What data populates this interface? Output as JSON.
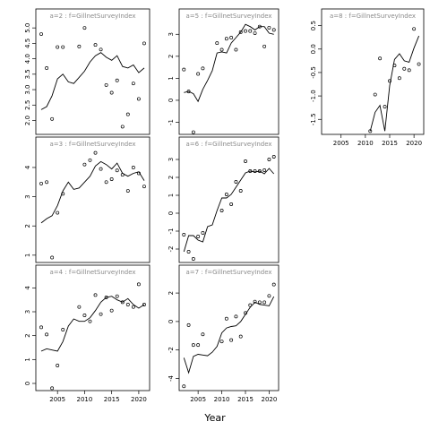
{
  "chart_data": {
    "type": "scatter",
    "xlabel": "Year",
    "x_ticks": [
      2005,
      2010,
      2015,
      2020
    ],
    "xlim": [
      2001,
      2022
    ],
    "panels": [
      {
        "label": "a=2 : f=GillnetSurveyIndex",
        "ylim": [
          1.55,
          5.15
        ],
        "y_ticks": [
          2.0,
          2.5,
          3.0,
          3.5,
          4.0,
          4.5,
          5.0
        ],
        "y_tick_labels": [
          "2.0",
          "2.5",
          "3.0",
          "3.5",
          "4.0",
          "4.5",
          "5.0"
        ],
        "points": {
          "x": [
            2002,
            2003,
            2004,
            2005,
            2006,
            2009,
            2010,
            2012,
            2013,
            2014,
            2015,
            2016,
            2017,
            2018,
            2019,
            2020,
            2021
          ],
          "y": [
            4.8,
            3.7,
            2.05,
            4.38,
            4.38,
            4.4,
            5.0,
            4.45,
            4.3,
            3.15,
            2.9,
            3.3,
            1.8,
            2.2,
            3.2,
            2.7,
            4.5
          ]
        },
        "line": {
          "x": [
            2002,
            2003,
            2004,
            2005,
            2006,
            2007,
            2008,
            2009,
            2010,
            2011,
            2012,
            2013,
            2014,
            2015,
            2016,
            2017,
            2018,
            2019,
            2020,
            2021
          ],
          "y": [
            2.35,
            2.45,
            2.8,
            3.35,
            3.5,
            3.25,
            3.2,
            3.4,
            3.6,
            3.9,
            4.1,
            4.2,
            4.05,
            3.95,
            4.1,
            3.75,
            3.7,
            3.8,
            3.55,
            3.7
          ]
        }
      },
      {
        "label": "a=5 : f=GillnetSurveyIndex",
        "ylim": [
          -1.55,
          3.5
        ],
        "y_ticks": [
          -1,
          0,
          1,
          2,
          3
        ],
        "y_tick_labels": [
          "-1",
          "0",
          "1",
          "2",
          "3"
        ],
        "points": {
          "x": [
            2002,
            2003,
            2004,
            2005,
            2006,
            2009,
            2010,
            2011,
            2012,
            2013,
            2014,
            2015,
            2016,
            2017,
            2018,
            2019,
            2020,
            2021
          ],
          "y": [
            1.4,
            0.4,
            -1.45,
            1.2,
            1.45,
            2.6,
            2.3,
            2.8,
            2.85,
            2.3,
            3.1,
            3.15,
            3.15,
            3.05,
            3.35,
            2.45,
            3.3,
            3.2
          ]
        },
        "line": {
          "x": [
            2002,
            2003,
            2004,
            2005,
            2006,
            2007,
            2008,
            2009,
            2010,
            2011,
            2012,
            2013,
            2014,
            2015,
            2016,
            2017,
            2018,
            2019,
            2020,
            2021
          ],
          "y": [
            0.35,
            0.4,
            0.3,
            -0.05,
            0.5,
            0.9,
            1.35,
            2.15,
            2.2,
            2.15,
            2.6,
            2.85,
            3.1,
            3.45,
            3.35,
            3.2,
            3.35,
            3.35,
            3.05,
            3.0
          ]
        }
      },
      {
        "label": "a=8 : f=GillnetSurveyIndex",
        "ylim": [
          -1.82,
          0.55
        ],
        "y_ticks": [
          -1.5,
          -1.0,
          -0.5,
          0.0,
          0.5
        ],
        "y_tick_labels": [
          "-1.5",
          "-1.0",
          "-0.5",
          "0.0",
          "0.5"
        ],
        "points": {
          "x": [
            2011,
            2012,
            2013,
            2014,
            2015,
            2016,
            2017,
            2018,
            2019,
            2020,
            2021
          ],
          "y": [
            -1.75,
            -0.97,
            -0.2,
            -1.23,
            -0.68,
            -0.35,
            -0.62,
            -0.42,
            -0.45,
            0.43,
            -0.32
          ]
        },
        "line": {
          "x": [
            2011,
            2012,
            2013,
            2014,
            2015,
            2016,
            2017,
            2018,
            2019,
            2020,
            2021
          ],
          "y": [
            -1.75,
            -1.35,
            -1.2,
            -1.75,
            -0.78,
            -0.22,
            -0.1,
            -0.25,
            -0.28,
            0.02,
            0.28
          ]
        }
      },
      {
        "label": "a=3 : f=GillnetSurveyIndex",
        "ylim": [
          0.75,
          4.55
        ],
        "y_ticks": [
          1,
          2,
          3,
          4
        ],
        "y_tick_labels": [
          "1",
          "2",
          "3",
          "4"
        ],
        "points": {
          "x": [
            2002,
            2003,
            2004,
            2005,
            2006,
            2010,
            2011,
            2012,
            2013,
            2014,
            2015,
            2016,
            2017,
            2018,
            2019,
            2020,
            2021
          ],
          "y": [
            3.45,
            3.5,
            0.92,
            2.45,
            3.1,
            4.1,
            4.25,
            4.5,
            3.95,
            3.5,
            3.6,
            3.9,
            3.75,
            3.2,
            4.0,
            3.8,
            3.35
          ]
        },
        "line": {
          "x": [
            2002,
            2003,
            2004,
            2005,
            2006,
            2007,
            2008,
            2009,
            2010,
            2011,
            2012,
            2013,
            2014,
            2015,
            2016,
            2017,
            2018,
            2019,
            2020,
            2021
          ],
          "y": [
            2.1,
            2.25,
            2.35,
            2.7,
            3.2,
            3.5,
            3.25,
            3.3,
            3.5,
            3.7,
            4.05,
            4.2,
            4.1,
            3.95,
            4.15,
            3.8,
            3.7,
            3.8,
            3.85,
            3.55
          ]
        }
      },
      {
        "label": "a=6 : f=GillnetSurveyIndex",
        "ylim": [
          -2.75,
          3.45
        ],
        "y_ticks": [
          -2,
          -1,
          0,
          1,
          2,
          3
        ],
        "y_tick_labels": [
          "-2",
          "-1",
          "0",
          "1",
          "2",
          "3"
        ],
        "points": {
          "x": [
            2002,
            2003,
            2004,
            2005,
            2006,
            2010,
            2011,
            2012,
            2013,
            2014,
            2015,
            2016,
            2017,
            2018,
            2019,
            2020,
            2021
          ],
          "y": [
            -1.2,
            -2.15,
            -2.55,
            -1.3,
            -1.1,
            0.15,
            1.05,
            0.5,
            1.75,
            1.25,
            2.9,
            2.35,
            2.35,
            2.35,
            2.4,
            3.0,
            3.15
          ]
        },
        "line": {
          "x": [
            2002,
            2003,
            2004,
            2005,
            2006,
            2007,
            2008,
            2009,
            2010,
            2011,
            2012,
            2013,
            2014,
            2015,
            2016,
            2017,
            2018,
            2019,
            2020,
            2021
          ],
          "y": [
            -2.15,
            -1.25,
            -1.25,
            -1.5,
            -1.6,
            -0.75,
            -0.65,
            0.15,
            0.85,
            0.85,
            1.05,
            1.45,
            1.85,
            2.25,
            2.35,
            2.3,
            2.35,
            2.2,
            2.5,
            2.2
          ]
        }
      },
      {
        "label": "a=4 : f=GillnetSurveyIndex",
        "ylim": [
          -0.3,
          4.35
        ],
        "y_ticks": [
          0,
          1,
          2,
          3,
          4
        ],
        "y_tick_labels": [
          "0",
          "1",
          "2",
          "3",
          "4"
        ],
        "points": {
          "x": [
            2002,
            2003,
            2004,
            2005,
            2006,
            2009,
            2010,
            2011,
            2012,
            2013,
            2014,
            2015,
            2016,
            2017,
            2018,
            2019,
            2020,
            2021
          ],
          "y": [
            2.35,
            2.05,
            -0.2,
            0.75,
            2.25,
            3.2,
            2.85,
            2.6,
            3.7,
            2.9,
            3.6,
            3.05,
            3.65,
            3.4,
            3.3,
            3.2,
            4.15,
            3.3
          ]
        },
        "line": {
          "x": [
            2002,
            2003,
            2004,
            2005,
            2006,
            2007,
            2008,
            2009,
            2010,
            2011,
            2012,
            2013,
            2014,
            2015,
            2016,
            2017,
            2018,
            2019,
            2020,
            2021
          ],
          "y": [
            1.35,
            1.45,
            1.4,
            1.35,
            1.75,
            2.4,
            2.7,
            2.6,
            2.6,
            2.75,
            3.05,
            3.4,
            3.6,
            3.65,
            3.5,
            3.4,
            3.55,
            3.3,
            3.15,
            3.3
          ]
        }
      },
      {
        "label": "a=7 : f=GillnetSurveyIndex",
        "ylim": [
          -4.85,
          2.95
        ],
        "y_ticks": [
          -4,
          -2,
          0,
          2
        ],
        "y_tick_labels": [
          "-4",
          "-2",
          "0",
          "2"
        ],
        "points": {
          "x": [
            2002,
            2003,
            2004,
            2005,
            2006,
            2010,
            2011,
            2012,
            2013,
            2014,
            2015,
            2016,
            2017,
            2018,
            2019,
            2020,
            2021
          ],
          "y": [
            -4.55,
            -0.25,
            -1.65,
            -1.65,
            -0.9,
            -1.4,
            0.2,
            -1.3,
            0.35,
            -1.05,
            0.6,
            1.15,
            1.4,
            1.35,
            1.35,
            1.8,
            2.6
          ]
        },
        "line": {
          "x": [
            2002,
            2003,
            2004,
            2005,
            2006,
            2007,
            2008,
            2009,
            2010,
            2011,
            2012,
            2013,
            2014,
            2015,
            2016,
            2017,
            2018,
            2019,
            2020,
            2021
          ],
          "y": [
            -2.55,
            -3.6,
            -2.45,
            -2.3,
            -2.35,
            -2.4,
            -2.15,
            -1.75,
            -0.8,
            -0.45,
            -0.35,
            -0.3,
            0.0,
            0.5,
            1.0,
            1.35,
            1.2,
            1.15,
            1.1,
            1.75
          ]
        }
      }
    ]
  }
}
